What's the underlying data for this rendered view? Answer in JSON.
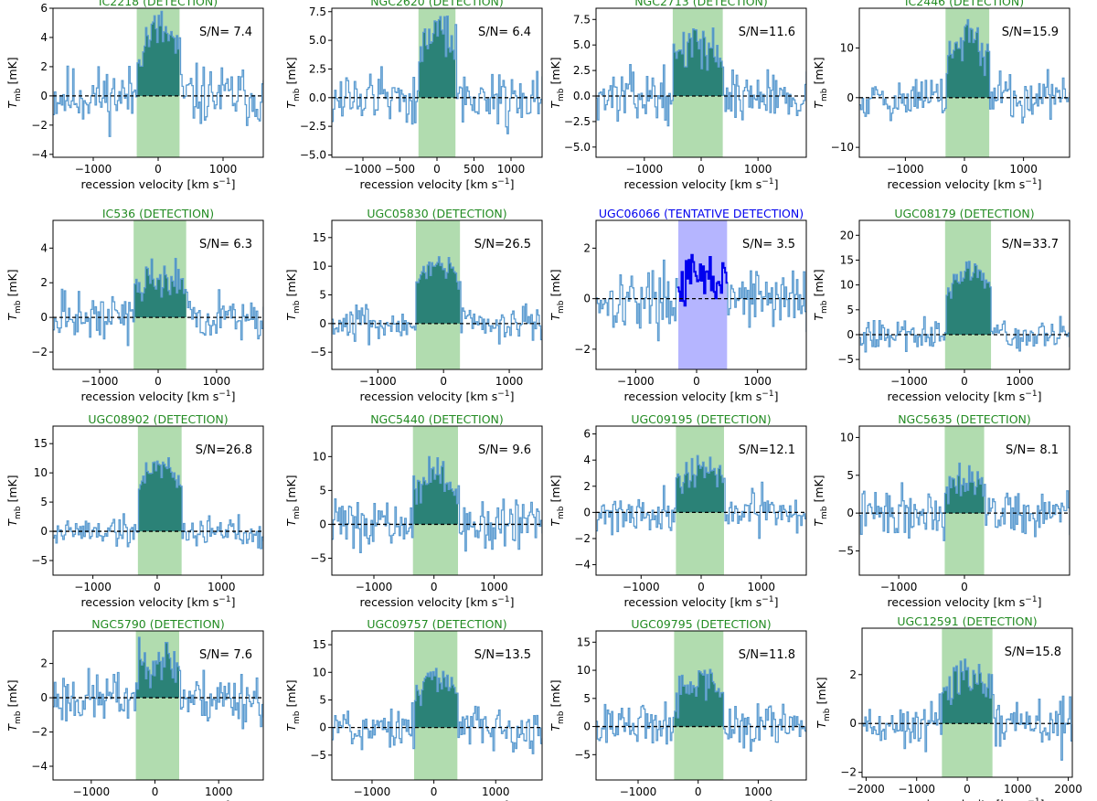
{
  "figure": {
    "xlabel_main": "recession velocity",
    "xlabel_unit": "[km s",
    "xlabel_unit_sup": "−1",
    "xlabel_close": "]",
    "ylabel_T": "T",
    "ylabel_sub": "mb",
    "ylabel_unit": " [mK]"
  },
  "chart_data": [
    {
      "type": "line",
      "title": "IC2218 (DETECTION)",
      "status": "detection",
      "title_color": "#228B22",
      "sn": "S/N= 7.4",
      "xlim": [
        -1620,
        1620
      ],
      "ylim": [
        -4.2,
        6.0
      ],
      "xticks": [
        -1000,
        0,
        1000
      ],
      "yticks": [
        -4,
        -2,
        0,
        2,
        4,
        6
      ],
      "window": [
        -330,
        330
      ],
      "peak": 4.5,
      "noise": 1.5,
      "seed": 11
    },
    {
      "type": "line",
      "title": "NGC2620 (DETECTION)",
      "status": "detection",
      "title_color": "#228B22",
      "sn": "S/N= 6.4",
      "xlim": [
        -1420,
        1420
      ],
      "ylim": [
        -5.2,
        7.8
      ],
      "xticks": [
        -1000,
        -500,
        0,
        500,
        1000
      ],
      "yticks": [
        -5.0,
        -2.5,
        0.0,
        2.5,
        5.0,
        7.5
      ],
      "window": [
        -250,
        250
      ],
      "peak": 6.0,
      "noise": 1.8,
      "seed": 12
    },
    {
      "type": "line",
      "title": "NGC2713 (DETECTION)",
      "status": "detection",
      "title_color": "#228B22",
      "sn": "S/N=11.6",
      "xlim": [
        -1850,
        1850
      ],
      "ylim": [
        -6.0,
        8.6
      ],
      "xticks": [
        -1000,
        0,
        1000
      ],
      "yticks": [
        -5.0,
        -2.5,
        0.0,
        2.5,
        5.0,
        7.5
      ],
      "window": [
        -500,
        380
      ],
      "peak": 5.2,
      "noise": 1.8,
      "seed": 13
    },
    {
      "type": "line",
      "title": "IC2446 (DETECTION)",
      "status": "detection",
      "title_color": "#228B22",
      "sn": "S/N=15.9",
      "xlim": [
        -1780,
        1780
      ],
      "ylim": [
        -12.0,
        18.0
      ],
      "xticks": [
        -1000,
        0,
        1000
      ],
      "yticks": [
        -10,
        0,
        10
      ],
      "window": [
        -320,
        420
      ],
      "peak": 11.5,
      "noise": 3.5,
      "seed": 14
    },
    {
      "type": "line",
      "title": "IC536 (DETECTION)",
      "status": "detection",
      "title_color": "#228B22",
      "sn": "S/N= 6.3",
      "xlim": [
        -1800,
        1800
      ],
      "ylim": [
        -3.0,
        5.6
      ],
      "xticks": [
        -1000,
        0,
        1000
      ],
      "yticks": [
        -2,
        0,
        2,
        4
      ],
      "window": [
        -420,
        480
      ],
      "peak": 2.4,
      "noise": 1.0,
      "seed": 15
    },
    {
      "type": "line",
      "title": "UGC05830 (DETECTION)",
      "status": "detection",
      "title_color": "#228B22",
      "sn": "S/N=26.5",
      "xlim": [
        -1700,
        1500
      ],
      "ylim": [
        -8.0,
        18.0
      ],
      "xticks": [
        -1000,
        0,
        1000
      ],
      "yticks": [
        -5,
        0,
        5,
        10,
        15
      ],
      "window": [
        -420,
        250
      ],
      "peak": 11.0,
      "noise": 2.2,
      "seed": 16
    },
    {
      "type": "line",
      "title": "UGC06066 (TENTATIVE DETECTION)",
      "status": "tentative",
      "title_color": "#0000EE",
      "sn": "S/N= 3.5",
      "xlim": [
        -1650,
        1800
      ],
      "ylim": [
        -2.8,
        3.1
      ],
      "xticks": [
        -1000,
        0,
        1000
      ],
      "yticks": [
        -2,
        0,
        2
      ],
      "window": [
        -300,
        500
      ],
      "peak": 0.8,
      "noise": 0.9,
      "seed": 17
    },
    {
      "type": "line",
      "title": "UGC08179 (DETECTION)",
      "status": "detection",
      "title_color": "#228B22",
      "sn": "S/N=33.7",
      "xlim": [
        -1900,
        1900
      ],
      "ylim": [
        -7.0,
        23.0
      ],
      "xticks": [
        -1000,
        0,
        1000
      ],
      "yticks": [
        -5,
        0,
        5,
        10,
        15,
        20
      ],
      "window": [
        -350,
        480
      ],
      "peak": 13.0,
      "noise": 2.2,
      "seed": 18
    },
    {
      "type": "line",
      "title": "UGC08902 (DETECTION)",
      "status": "detection",
      "title_color": "#228B22",
      "sn": "S/N=26.8",
      "xlim": [
        -1620,
        1650
      ],
      "ylim": [
        -7.5,
        18.0
      ],
      "xticks": [
        -1000,
        0,
        1000
      ],
      "yticks": [
        -5,
        0,
        5,
        10,
        15
      ],
      "window": [
        -300,
        380
      ],
      "peak": 11.5,
      "noise": 2.0,
      "seed": 19
    },
    {
      "type": "line",
      "title": "NGC5440 (DETECTION)",
      "status": "detection",
      "title_color": "#228B22",
      "sn": "S/N= 9.6",
      "xlim": [
        -1700,
        1800
      ],
      "ylim": [
        -7.5,
        14.5
      ],
      "xticks": [
        -1000,
        0,
        1000
      ],
      "yticks": [
        -5,
        0,
        5,
        10
      ],
      "window": [
        -350,
        400
      ],
      "peak": 7.0,
      "noise": 2.5,
      "seed": 20
    },
    {
      "type": "line",
      "title": "UGC09195 (DETECTION)",
      "status": "detection",
      "title_color": "#228B22",
      "sn": "S/N=12.1",
      "xlim": [
        -1750,
        1750
      ],
      "ylim": [
        -4.8,
        6.6
      ],
      "xticks": [
        -1000,
        0,
        1000
      ],
      "yticks": [
        -4,
        -2,
        0,
        2,
        4,
        6
      ],
      "window": [
        -420,
        380
      ],
      "peak": 3.4,
      "noise": 1.2,
      "seed": 21
    },
    {
      "type": "line",
      "title": "NGC5635 (DETECTION)",
      "status": "detection",
      "title_color": "#228B22",
      "sn": "S/N= 8.1",
      "xlim": [
        -1600,
        1600
      ],
      "ylim": [
        -8.2,
        11.5
      ],
      "xticks": [
        -1000,
        0
      ],
      "yticks": [
        -5,
        0,
        5,
        10
      ],
      "window": [
        -300,
        300
      ],
      "peak": 5.0,
      "noise": 2.3,
      "seed": 22
    },
    {
      "type": "line",
      "title": "NGC5790 (DETECTION)",
      "status": "detection",
      "title_color": "#228B22",
      "sn": "S/N= 7.6",
      "xlim": [
        -1600,
        1700
      ],
      "ylim": [
        -4.8,
        3.9
      ],
      "xticks": [
        -1000,
        0,
        1000
      ],
      "yticks": [
        -4,
        -2,
        0,
        2
      ],
      "window": [
        -300,
        380
      ],
      "peak": 2.4,
      "noise": 1.2,
      "seed": 23
    },
    {
      "type": "line",
      "title": "UGC09757 (DETECTION)",
      "status": "detection",
      "title_color": "#228B22",
      "sn": "S/N=13.5",
      "xlim": [
        -1650,
        1750
      ],
      "ylim": [
        -9.5,
        17.5
      ],
      "xticks": [
        -1000,
        0,
        1000
      ],
      "yticks": [
        -5,
        0,
        5,
        10,
        15
      ],
      "window": [
        -320,
        380
      ],
      "peak": 9.0,
      "noise": 3.0,
      "seed": 24
    },
    {
      "type": "line",
      "title": "UGC09795 (DETECTION)",
      "status": "detection",
      "title_color": "#228B22",
      "sn": "S/N=11.8",
      "xlim": [
        -1700,
        1800
      ],
      "ylim": [
        -9.5,
        17.0
      ],
      "xticks": [
        -1000,
        0,
        1000
      ],
      "yticks": [
        -5,
        0,
        5,
        10,
        15
      ],
      "window": [
        -400,
        420
      ],
      "peak": 8.5,
      "noise": 3.0,
      "seed": 25
    },
    {
      "type": "line",
      "title": "UGC12591 (DETECTION)",
      "status": "detection",
      "title_color": "#228B22",
      "sn": "S/N=15.8",
      "xlim": [
        -2080,
        2080
      ],
      "ylim": [
        -2.2,
        3.9
      ],
      "xticks": [
        -2000,
        -1000,
        0,
        1000,
        2000
      ],
      "yticks": [
        -2,
        0,
        2
      ],
      "window": [
        -500,
        500
      ],
      "peak": 2.0,
      "noise": 0.8,
      "seed": 26
    }
  ]
}
